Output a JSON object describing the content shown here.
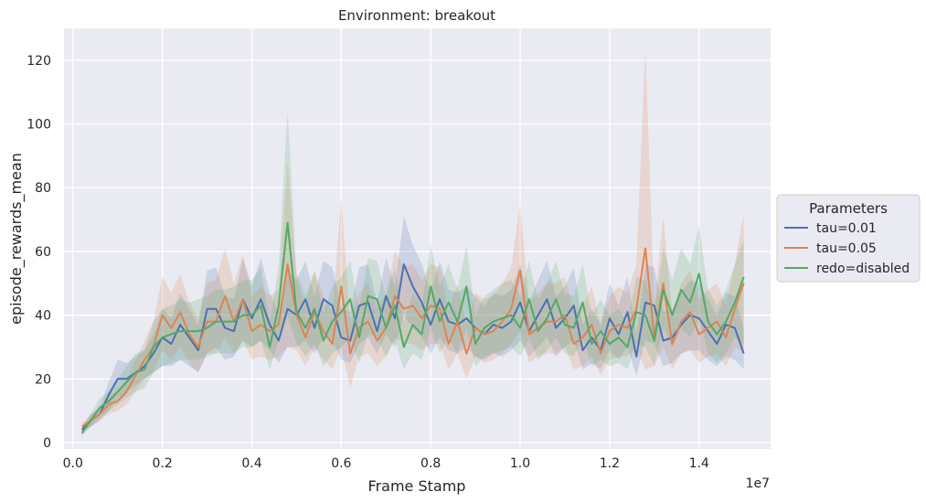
{
  "chart_data": {
    "type": "line",
    "title": "Environment: breakout",
    "xlabel": "Frame Stamp",
    "ylabel": "episode_rewards_mean",
    "x_offset_label": "1e7",
    "xlim": [
      -0.02,
      1.56
    ],
    "ylim": [
      -2,
      130
    ],
    "x_ticks": [
      0.0,
      0.2,
      0.4,
      0.6,
      0.8,
      1.0,
      1.2,
      1.4
    ],
    "x_tick_labels": [
      "0.0",
      "0.2",
      "0.4",
      "0.6",
      "0.8",
      "1.0",
      "1.2",
      "1.4"
    ],
    "y_ticks": [
      0,
      20,
      40,
      60,
      80,
      100,
      120
    ],
    "y_tick_labels": [
      "0",
      "20",
      "40",
      "60",
      "80",
      "100",
      "120"
    ],
    "grid": true,
    "legend": {
      "title": "Parameters",
      "placement": "outside-right"
    },
    "x": [
      0.02,
      0.04,
      0.06,
      0.08,
      0.1,
      0.12,
      0.14,
      0.16,
      0.18,
      0.2,
      0.22,
      0.24,
      0.26,
      0.28,
      0.3,
      0.32,
      0.34,
      0.36,
      0.38,
      0.4,
      0.42,
      0.44,
      0.46,
      0.48,
      0.5,
      0.52,
      0.54,
      0.56,
      0.58,
      0.6,
      0.62,
      0.64,
      0.66,
      0.68,
      0.7,
      0.72,
      0.74,
      0.76,
      0.78,
      0.8,
      0.82,
      0.84,
      0.86,
      0.88,
      0.9,
      0.92,
      0.94,
      0.96,
      0.98,
      1.0,
      1.02,
      1.04,
      1.06,
      1.08,
      1.1,
      1.12,
      1.14,
      1.16,
      1.18,
      1.2,
      1.22,
      1.24,
      1.26,
      1.28,
      1.3,
      1.32,
      1.34,
      1.36,
      1.38,
      1.4,
      1.42,
      1.44,
      1.46,
      1.48,
      1.5
    ],
    "series": [
      {
        "name": "tau=0.01",
        "color": "#4c72b0",
        "values": [
          4,
          7,
          9,
          15,
          20,
          20,
          22,
          24,
          28,
          33,
          31,
          37,
          33,
          29,
          42,
          42,
          36,
          35,
          45,
          39,
          45,
          37,
          32,
          42,
          40,
          45,
          36,
          45,
          43,
          33,
          32,
          43,
          44,
          35,
          46,
          39,
          56,
          49,
          44,
          37,
          45,
          38,
          37,
          39,
          36,
          34,
          37,
          36,
          38,
          44,
          35,
          40,
          45,
          36,
          39,
          43,
          29,
          33,
          29,
          39,
          34,
          41,
          27,
          44,
          43,
          32,
          33,
          37,
          40,
          39,
          35,
          31,
          37,
          36,
          28
        ],
        "lower": [
          3,
          5,
          7,
          10,
          14,
          16,
          18,
          20,
          22,
          24,
          24,
          26,
          24,
          22,
          28,
          30,
          26,
          27,
          32,
          30,
          32,
          29,
          25,
          30,
          30,
          32,
          28,
          33,
          32,
          26,
          25,
          31,
          33,
          28,
          34,
          30,
          40,
          36,
          33,
          28,
          33,
          29,
          28,
          30,
          27,
          26,
          28,
          27,
          29,
          32,
          27,
          30,
          33,
          27,
          30,
          32,
          23,
          25,
          23,
          29,
          26,
          30,
          21,
          32,
          31,
          24,
          25,
          28,
          29,
          29,
          26,
          24,
          27,
          26,
          23
        ],
        "upper": [
          5,
          9,
          11,
          19,
          26,
          25,
          27,
          29,
          34,
          42,
          39,
          47,
          42,
          37,
          54,
          55,
          46,
          45,
          58,
          49,
          58,
          47,
          41,
          54,
          51,
          57,
          46,
          57,
          55,
          42,
          41,
          55,
          56,
          44,
          58,
          49,
          71,
          62,
          56,
          47,
          57,
          48,
          47,
          49,
          46,
          43,
          47,
          46,
          48,
          56,
          44,
          51,
          57,
          46,
          49,
          55,
          37,
          42,
          37,
          50,
          43,
          52,
          34,
          56,
          55,
          41,
          42,
          47,
          51,
          50,
          45,
          40,
          47,
          46,
          36
        ]
      },
      {
        "name": "tau=0.05",
        "color": "#dd8452",
        "values": [
          5,
          7,
          9,
          12,
          13,
          16,
          21,
          26,
          30,
          40,
          36,
          41,
          34,
          30,
          38,
          38,
          46,
          38,
          45,
          35,
          37,
          35,
          37,
          56,
          40,
          33,
          41,
          35,
          31,
          49,
          28,
          36,
          38,
          32,
          36,
          46,
          42,
          43,
          39,
          43,
          42,
          31,
          38,
          28,
          36,
          34,
          35,
          38,
          42,
          54,
          34,
          36,
          38,
          38,
          40,
          31,
          33,
          37,
          28,
          35,
          37,
          36,
          42,
          61,
          33,
          50,
          31,
          38,
          41,
          34,
          36,
          38,
          33,
          42,
          50
        ],
        "lower": [
          4,
          5,
          7,
          9,
          10,
          12,
          16,
          20,
          22,
          29,
          26,
          30,
          25,
          22,
          28,
          28,
          33,
          28,
          32,
          26,
          27,
          26,
          27,
          30,
          29,
          24,
          30,
          26,
          23,
          30,
          17,
          27,
          28,
          24,
          27,
          33,
          31,
          31,
          29,
          31,
          31,
          23,
          28,
          20,
          27,
          25,
          26,
          28,
          31,
          35,
          25,
          27,
          28,
          28,
          30,
          23,
          24,
          27,
          21,
          26,
          27,
          27,
          30,
          23,
          24,
          30,
          23,
          28,
          29,
          25,
          27,
          28,
          24,
          30,
          28
        ],
        "upper": [
          6,
          9,
          11,
          15,
          16,
          20,
          26,
          32,
          38,
          52,
          47,
          53,
          44,
          39,
          50,
          51,
          61,
          50,
          59,
          46,
          49,
          46,
          48,
          88,
          52,
          43,
          54,
          46,
          41,
          77,
          38,
          47,
          50,
          42,
          47,
          60,
          55,
          56,
          51,
          56,
          55,
          41,
          50,
          37,
          47,
          45,
          46,
          50,
          55,
          75,
          44,
          47,
          50,
          50,
          52,
          41,
          43,
          49,
          37,
          46,
          49,
          47,
          56,
          124,
          43,
          71,
          41,
          50,
          54,
          45,
          48,
          50,
          43,
          56,
          72
        ]
      },
      {
        "name": "redo=disabled",
        "color": "#55a868",
        "values": [
          3,
          7,
          11,
          13,
          16,
          19,
          22,
          23,
          30,
          33,
          34,
          35,
          35,
          35,
          36,
          38,
          38,
          38,
          40,
          40,
          43,
          30,
          43,
          69,
          41,
          36,
          42,
          32,
          38,
          41,
          45,
          33,
          46,
          45,
          36,
          43,
          30,
          37,
          34,
          49,
          38,
          44,
          38,
          49,
          31,
          36,
          38,
          39,
          40,
          36,
          45,
          35,
          39,
          45,
          37,
          36,
          44,
          31,
          35,
          31,
          33,
          30,
          41,
          40,
          32,
          48,
          40,
          48,
          44,
          53,
          38,
          34,
          38,
          44,
          52
        ],
        "lower": [
          2,
          5,
          8,
          10,
          12,
          14,
          16,
          17,
          22,
          24,
          25,
          26,
          26,
          26,
          27,
          28,
          28,
          28,
          30,
          30,
          32,
          23,
          32,
          40,
          31,
          27,
          31,
          24,
          28,
          30,
          33,
          25,
          34,
          33,
          27,
          32,
          23,
          28,
          26,
          36,
          28,
          33,
          28,
          36,
          24,
          27,
          28,
          29,
          30,
          27,
          33,
          26,
          29,
          33,
          28,
          27,
          33,
          24,
          26,
          24,
          25,
          23,
          31,
          30,
          24,
          36,
          30,
          36,
          33,
          39,
          28,
          25,
          28,
          33,
          31
        ],
        "upper": [
          4,
          9,
          14,
          16,
          20,
          24,
          28,
          29,
          38,
          42,
          43,
          45,
          44,
          45,
          46,
          48,
          48,
          49,
          51,
          51,
          55,
          38,
          55,
          104,
          53,
          46,
          54,
          41,
          49,
          52,
          57,
          42,
          58,
          57,
          46,
          55,
          38,
          47,
          43,
          62,
          49,
          56,
          48,
          62,
          40,
          46,
          48,
          50,
          51,
          46,
          57,
          45,
          50,
          57,
          47,
          46,
          56,
          40,
          45,
          40,
          42,
          38,
          52,
          51,
          41,
          61,
          51,
          61,
          56,
          68,
          48,
          43,
          48,
          56,
          64
        ]
      }
    ]
  }
}
